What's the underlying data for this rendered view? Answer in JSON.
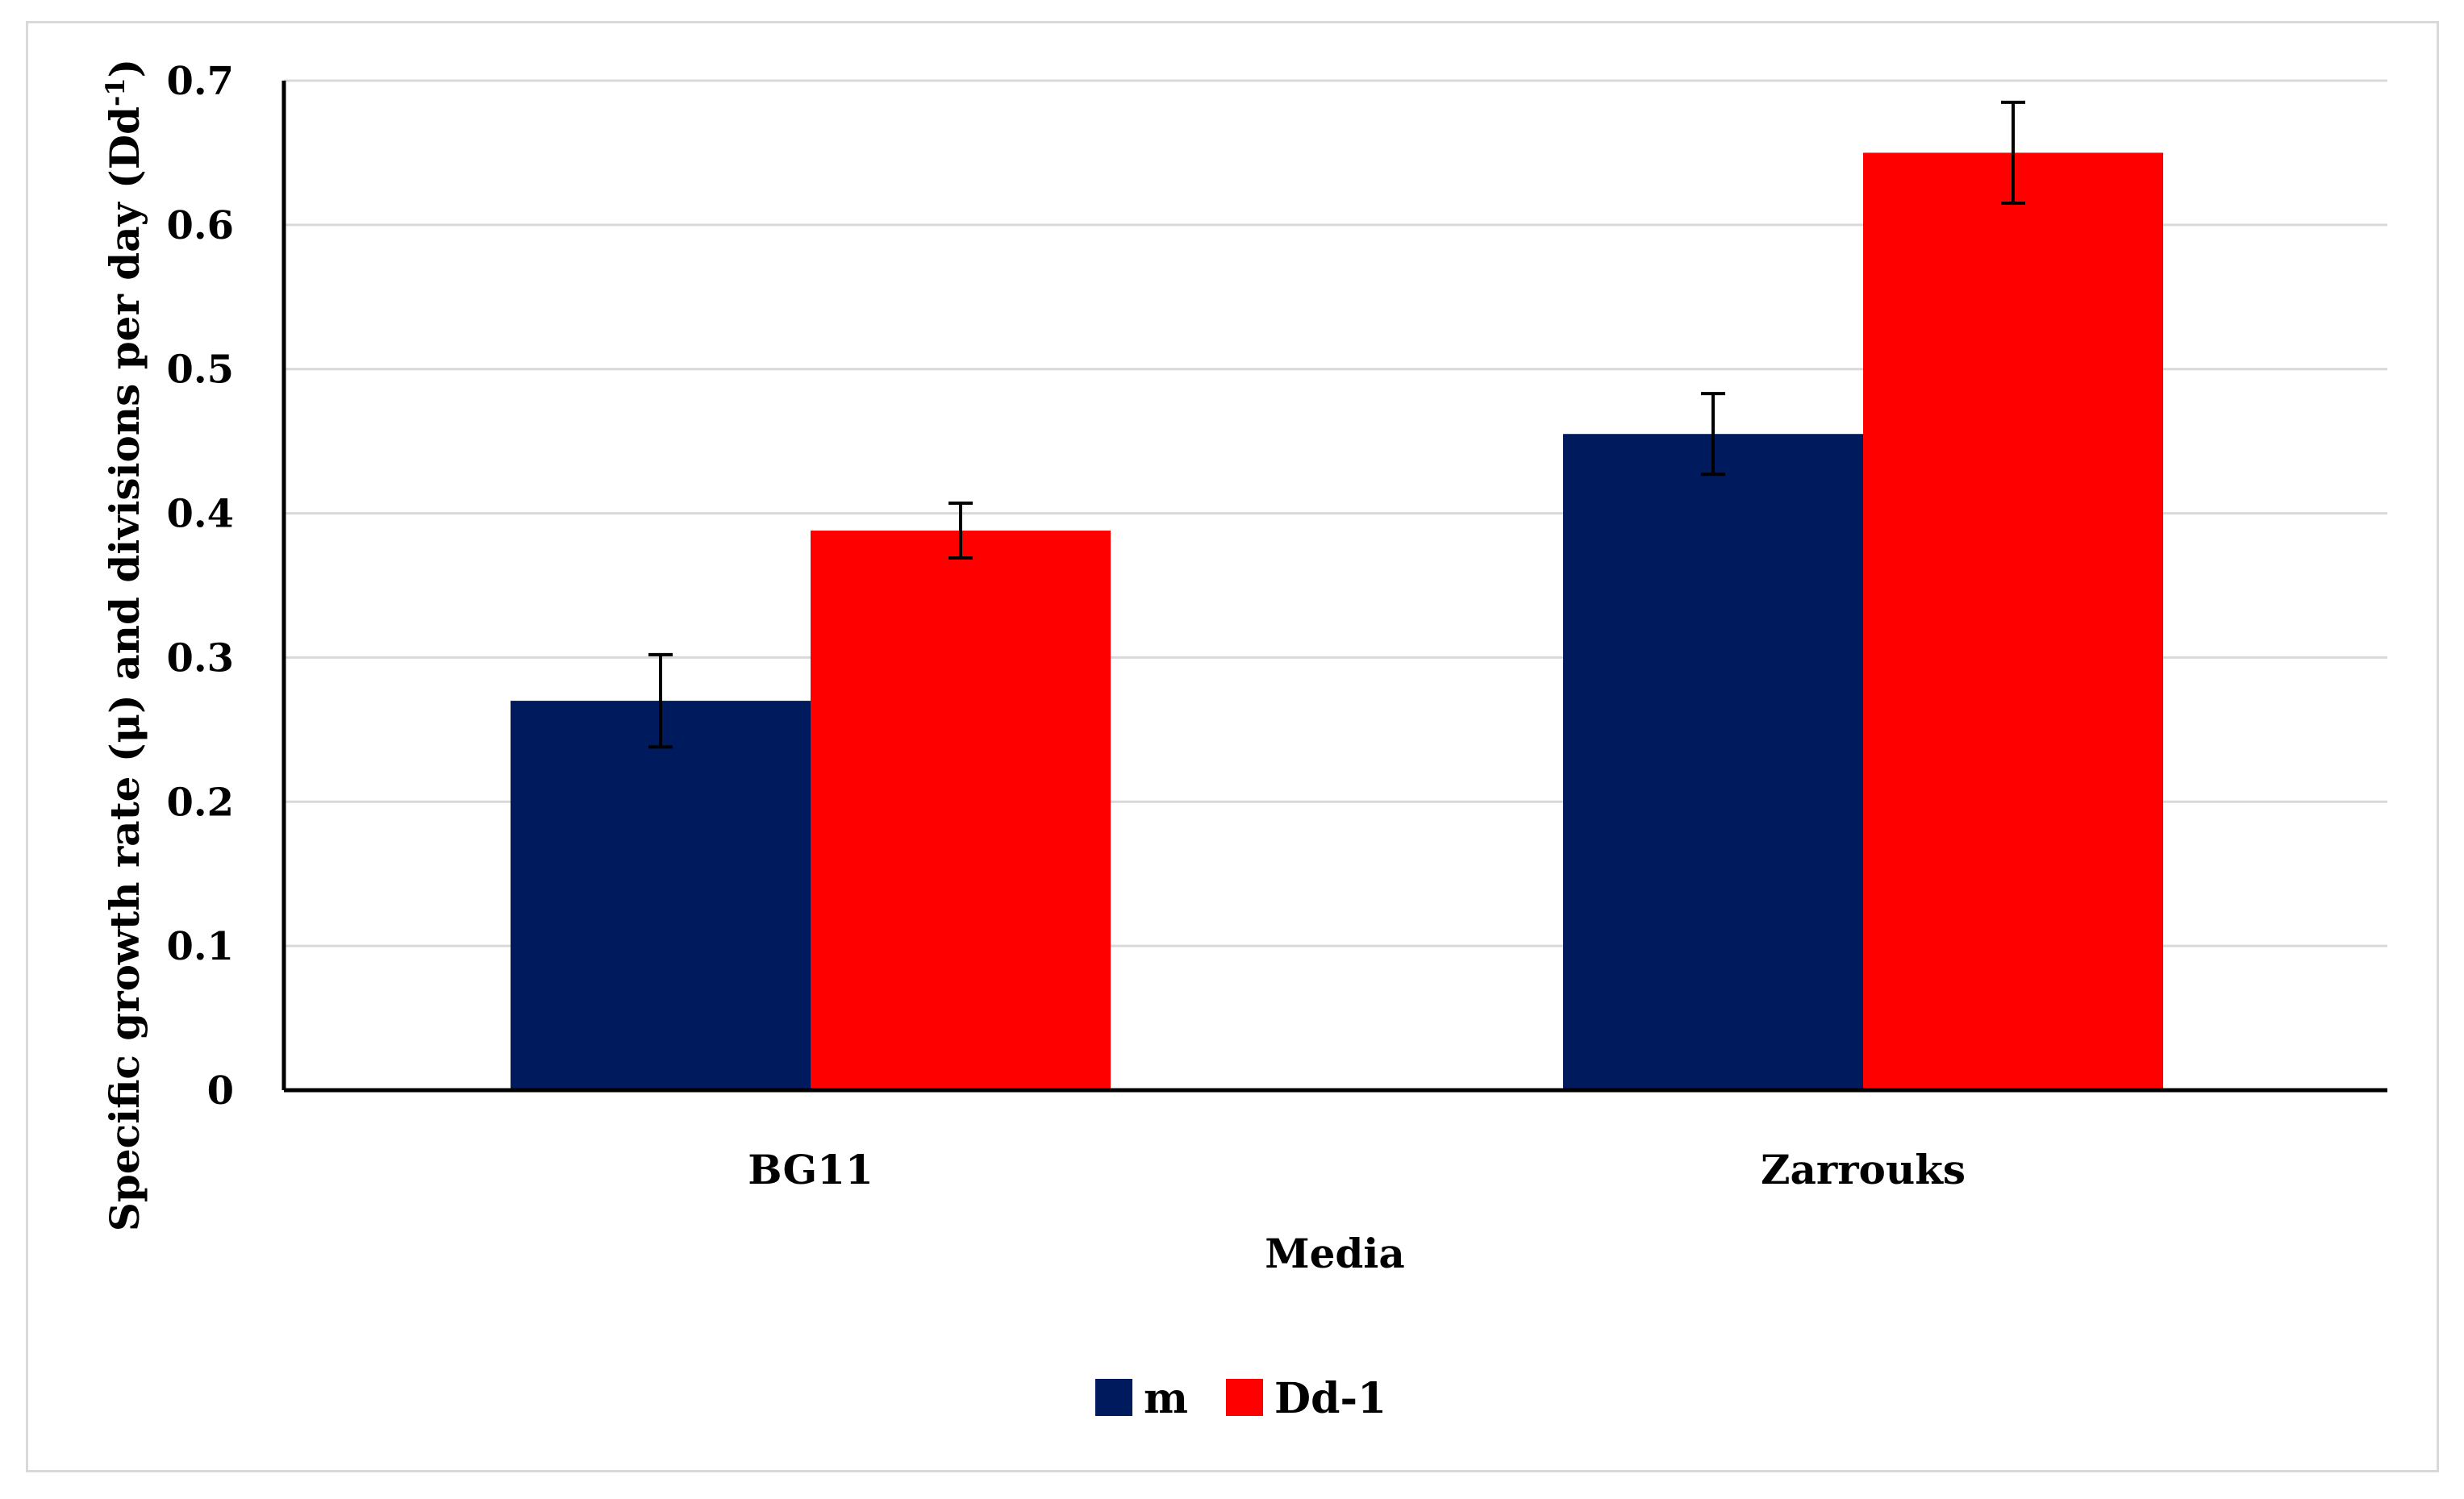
{
  "chart_data": {
    "type": "bar",
    "categories": [
      "BG11",
      "Zarrouks"
    ],
    "series": [
      {
        "name": "m",
        "color": "#001a5e",
        "values": [
          0.27,
          0.455
        ],
        "error": [
          0.032,
          0.028
        ]
      },
      {
        "name": "Dd-1",
        "color": "#ff0000",
        "values": [
          0.388,
          0.65
        ],
        "error": [
          0.019,
          0.035
        ]
      }
    ],
    "xlabel": "Media",
    "ylabel": "Specific growth rate (μ) and divisions per day (Dd",
    "ylabel_superscript": "-1",
    "ylabel_end": ")",
    "ylim": [
      0,
      0.7
    ],
    "yticks": [
      "0",
      "0.1",
      "0.2",
      "0.3",
      "0.4",
      "0.5",
      "0.6",
      "0.7"
    ],
    "grid": true,
    "legend_position": "bottom-center"
  }
}
